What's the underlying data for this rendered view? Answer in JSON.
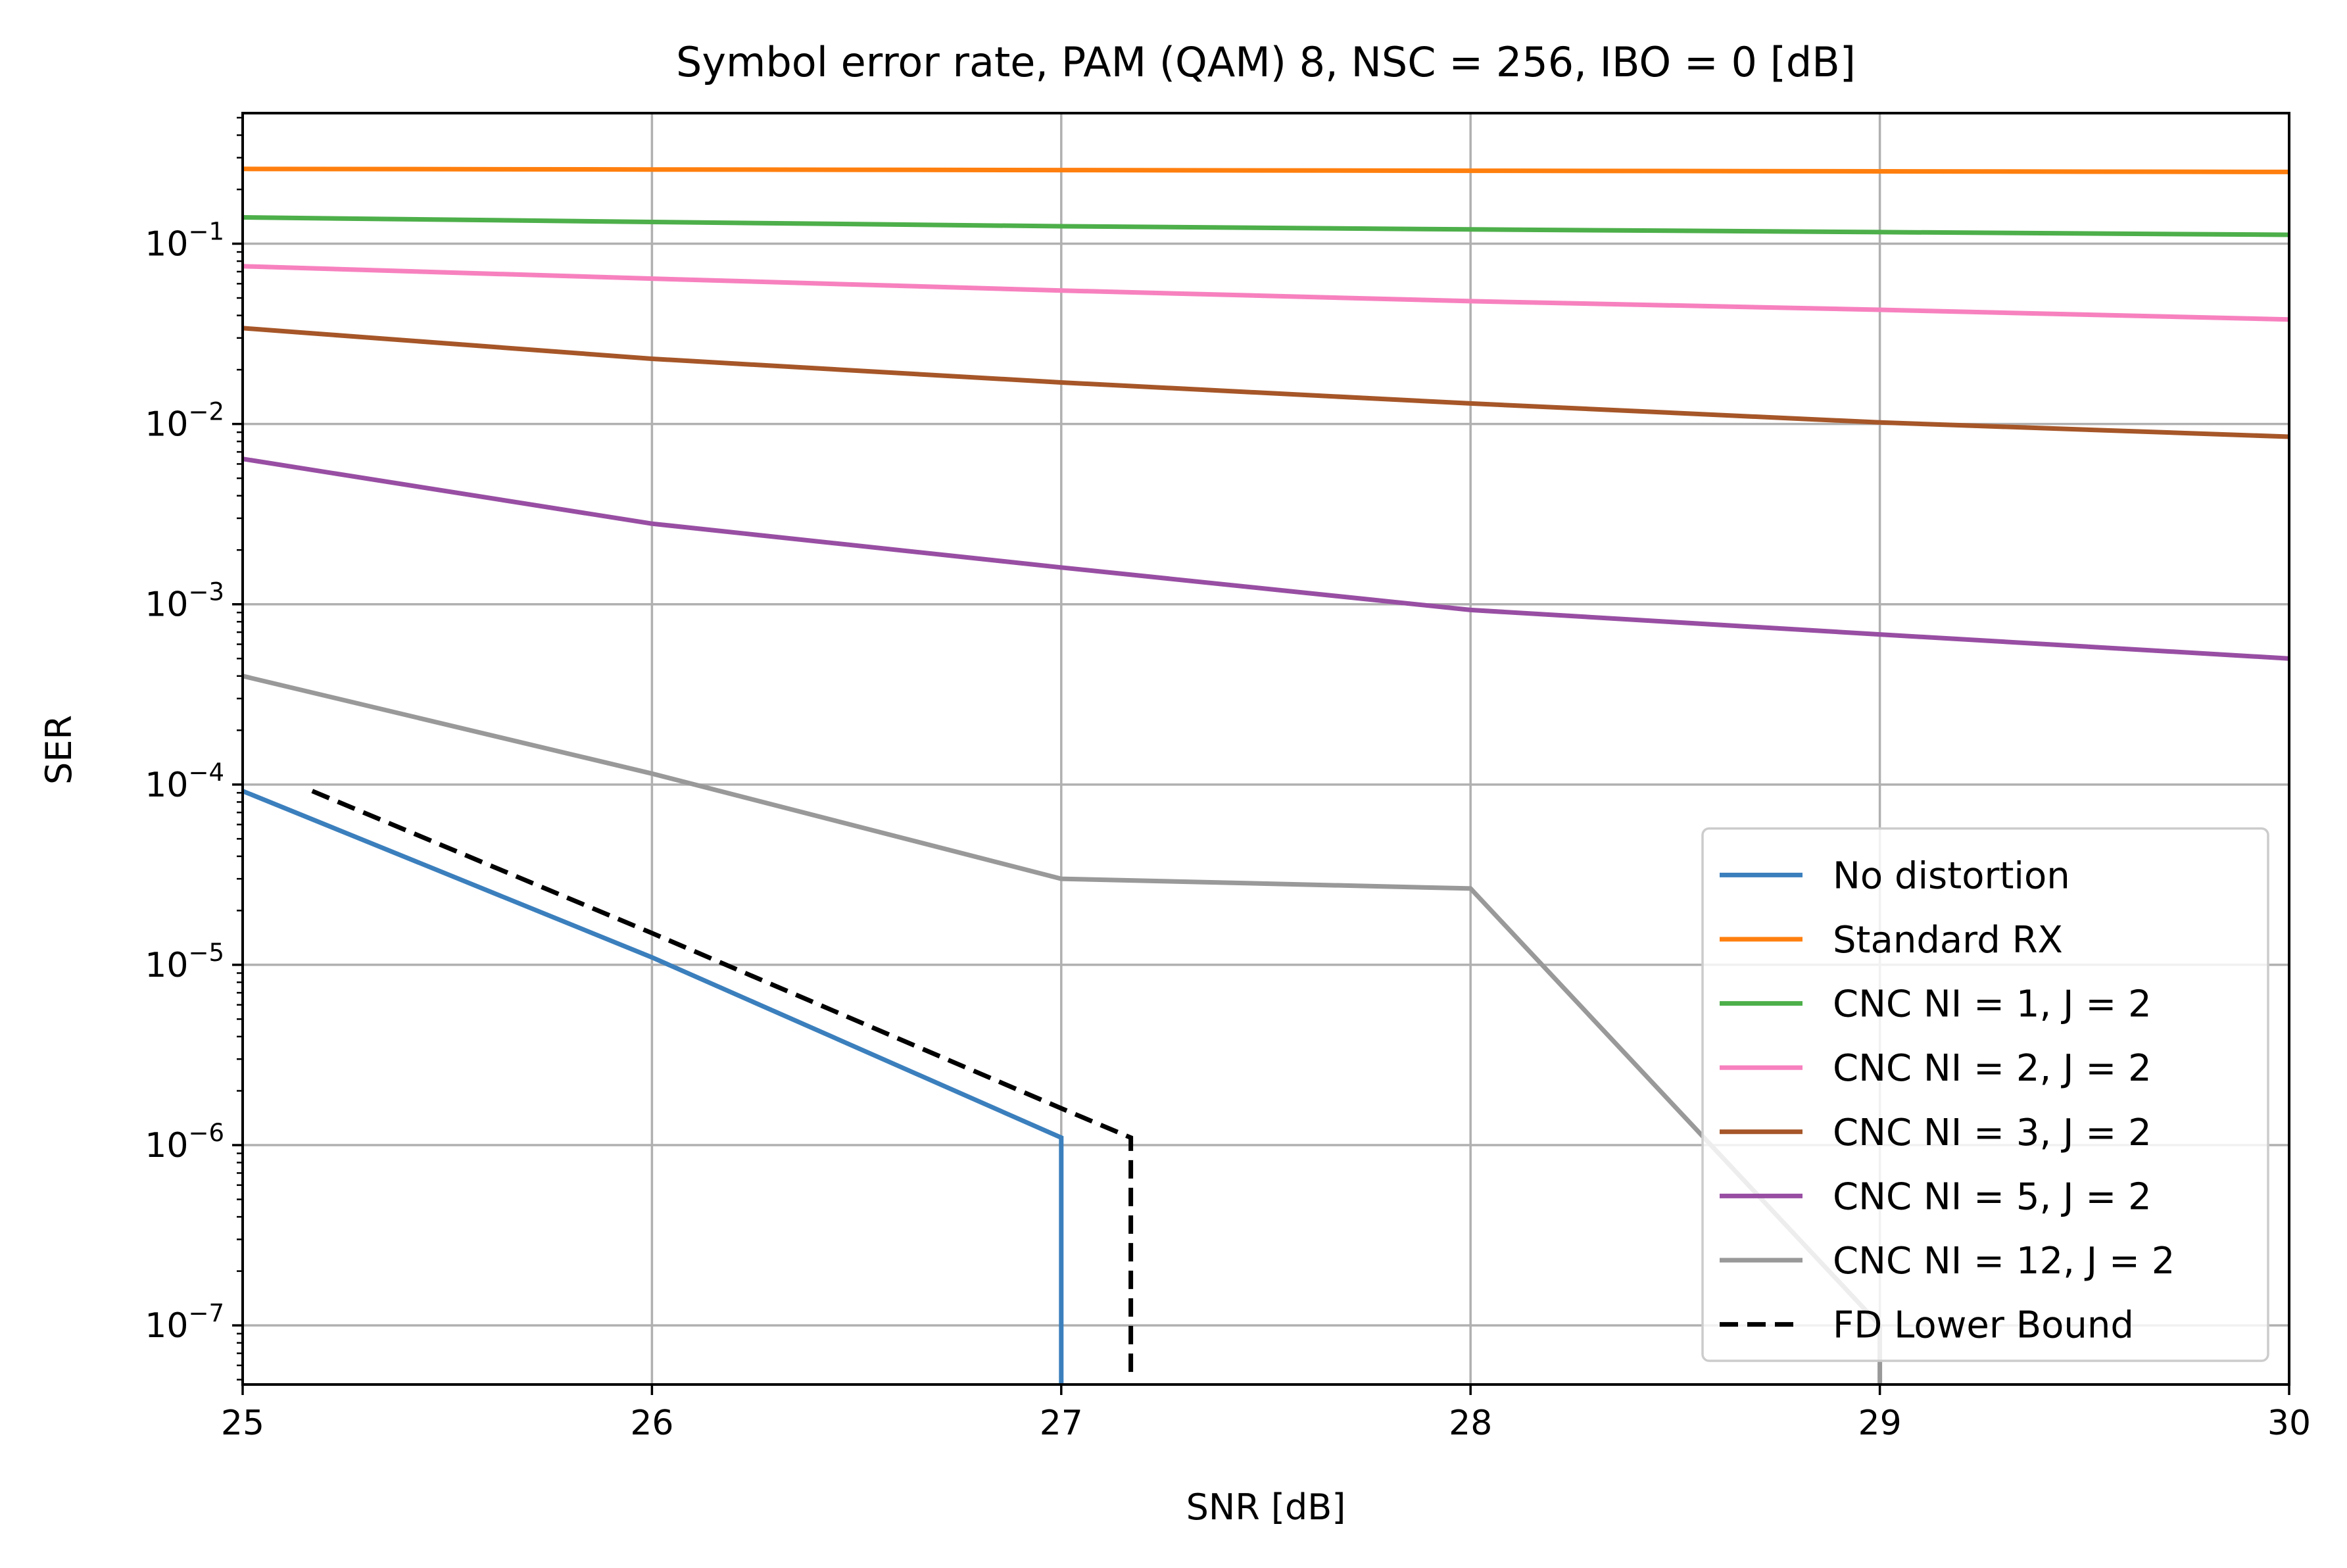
{
  "chart_data": {
    "type": "line",
    "title": "Symbol error rate, PAM (QAM) 8, NSC = 256, IBO = 0 [dB]",
    "xlabel": "SNR [dB]",
    "ylabel": "SER",
    "xlim": [
      25,
      30
    ],
    "ylim": [
      4.7e-08,
      0.53
    ],
    "yscale": "log",
    "grid": true,
    "legend_position": "lower-right",
    "x_ticks": [
      "25",
      "26",
      "27",
      "28",
      "29",
      "30"
    ],
    "y_ticks": [
      {
        "value": 0.1,
        "base": "10",
        "exp": "−1"
      },
      {
        "value": 0.01,
        "base": "10",
        "exp": "−2"
      },
      {
        "value": 0.001,
        "base": "10",
        "exp": "−3"
      },
      {
        "value": 0.0001,
        "base": "10",
        "exp": "−4"
      },
      {
        "value": 1e-05,
        "base": "10",
        "exp": "−5"
      },
      {
        "value": 1e-06,
        "base": "10",
        "exp": "−6"
      },
      {
        "value": 1e-07,
        "base": "10",
        "exp": "−7"
      }
    ],
    "series": [
      {
        "name": "No distortion",
        "color": "#3b7fbd",
        "dash": "solid",
        "x": [
          25,
          26,
          27,
          27,
          27
        ],
        "y": [
          9.2e-05,
          1.1e-05,
          1.1e-06,
          1e-07,
          4.7e-08
        ]
      },
      {
        "name": "Standard RX",
        "color": "#ff7f0e",
        "dash": "solid",
        "x": [
          25,
          26,
          27,
          28,
          29,
          30
        ],
        "y": [
          0.26,
          0.258,
          0.256,
          0.254,
          0.252,
          0.25
        ]
      },
      {
        "name": "CNC NI = 1, J = 2",
        "color": "#4daf4a",
        "dash": "solid",
        "x": [
          25,
          26,
          27,
          28,
          29,
          30
        ],
        "y": [
          0.14,
          0.132,
          0.125,
          0.12,
          0.116,
          0.112
        ]
      },
      {
        "name": "CNC NI = 2, J = 2",
        "color": "#f781bf",
        "dash": "solid",
        "x": [
          25,
          26,
          27,
          28,
          29,
          30
        ],
        "y": [
          0.075,
          0.064,
          0.055,
          0.048,
          0.043,
          0.038
        ]
      },
      {
        "name": "CNC NI = 3, J = 2",
        "color": "#a65628",
        "dash": "solid",
        "x": [
          25,
          26,
          27,
          28,
          29,
          30
        ],
        "y": [
          0.034,
          0.023,
          0.017,
          0.013,
          0.0102,
          0.0085
        ]
      },
      {
        "name": "CNC NI = 5, J = 2",
        "color": "#984ea3",
        "dash": "solid",
        "x": [
          25,
          26,
          27,
          28,
          29,
          30
        ],
        "y": [
          0.0064,
          0.0028,
          0.0016,
          0.00093,
          0.00068,
          0.0005
        ]
      },
      {
        "name": "CNC NI = 12, J = 2",
        "color": "#999999",
        "dash": "solid",
        "x": [
          25,
          26,
          27,
          28,
          29,
          29
        ],
        "y": [
          0.0004,
          0.000115,
          3e-05,
          2.65e-05,
          1e-07,
          4.7e-08
        ]
      },
      {
        "name": "FD Lower Bound",
        "color": "#000000",
        "dash": "dashed",
        "x": [
          25.17,
          26,
          27,
          27.17,
          27.17
        ],
        "y": [
          9.2e-05,
          1.5e-05,
          1.6e-06,
          1.1e-06,
          5e-08
        ]
      }
    ]
  }
}
